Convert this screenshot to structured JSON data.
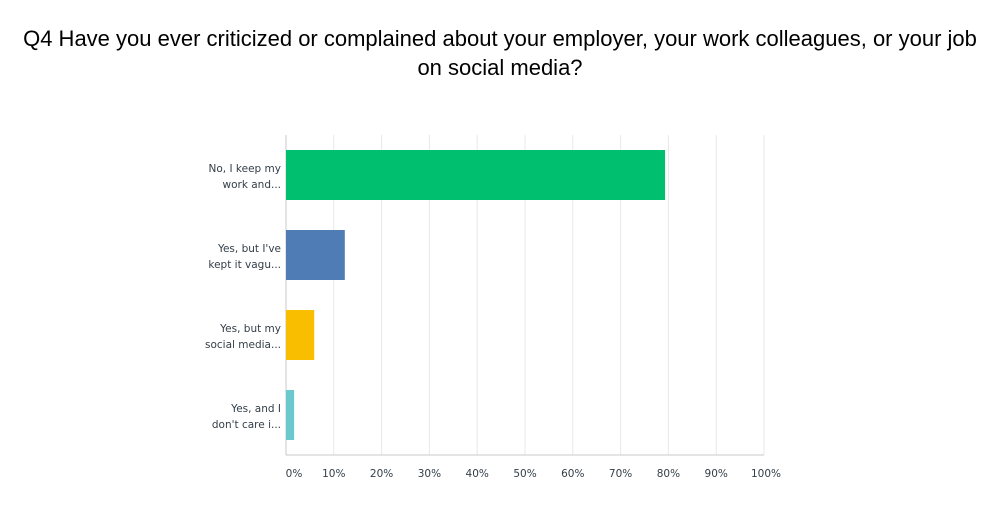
{
  "chart_data": {
    "type": "bar",
    "orientation": "horizontal",
    "title": "Q4 Have you ever criticized or complained about your employer, your work colleagues, or your job on social media?",
    "categories": [
      [
        "No, I keep my",
        "work and..."
      ],
      [
        "Yes, but I've",
        "kept it vagu..."
      ],
      [
        "Yes, but my",
        "social media..."
      ],
      [
        "Yes, and I",
        "don't care i..."
      ]
    ],
    "values": [
      79.3,
      12.3,
      5.9,
      1.7
    ],
    "colors": [
      "#00bf6f",
      "#507cb6",
      "#f9be00",
      "#6bc8cd"
    ],
    "xlim": [
      0,
      100
    ],
    "xticks": [
      "0%",
      "10%",
      "20%",
      "30%",
      "40%",
      "50%",
      "60%",
      "70%",
      "80%",
      "90%",
      "100%"
    ],
    "grid": true,
    "xlabel": "",
    "ylabel": ""
  }
}
